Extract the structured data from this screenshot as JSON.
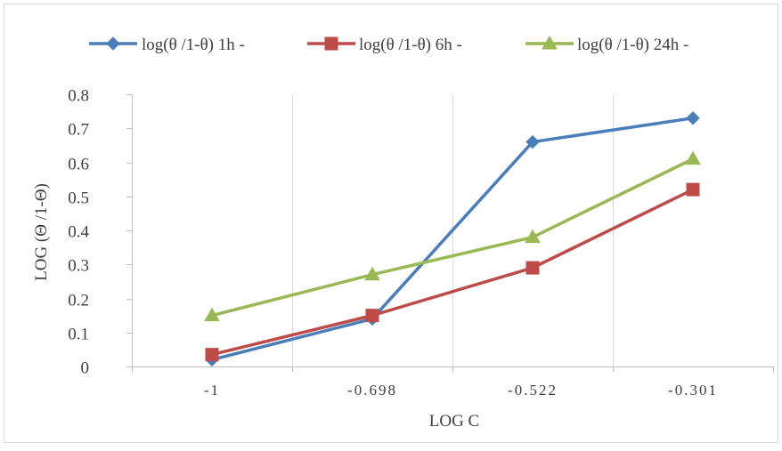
{
  "chart_data": {
    "type": "line",
    "title": "",
    "xlabel": "LOG C",
    "ylabel": "LOG (Θ /1-Θ)",
    "categories": [
      "-1",
      "-0.698",
      "-0.522",
      "-0.301"
    ],
    "ylim": [
      0,
      0.8
    ],
    "yticks": [
      "0",
      "0.1",
      "0.2",
      "0.3",
      "0.4",
      "0.5",
      "0.6",
      "0.7",
      "0.8"
    ],
    "grid": "vertical",
    "legend_position": "top",
    "series": [
      {
        "name": "log(θ /1-θ) 1h -",
        "values": [
          0.02,
          0.14,
          0.66,
          0.73
        ],
        "color": "#4a7ebb",
        "marker": "diamond"
      },
      {
        "name": "log(θ /1-θ) 6h -",
        "values": [
          0.035,
          0.15,
          0.29,
          0.52
        ],
        "color": "#be4b48",
        "marker": "square"
      },
      {
        "name": "log(θ /1-θ) 24h -",
        "values": [
          0.15,
          0.27,
          0.38,
          0.61
        ],
        "color": "#98b954",
        "marker": "triangle"
      }
    ]
  }
}
